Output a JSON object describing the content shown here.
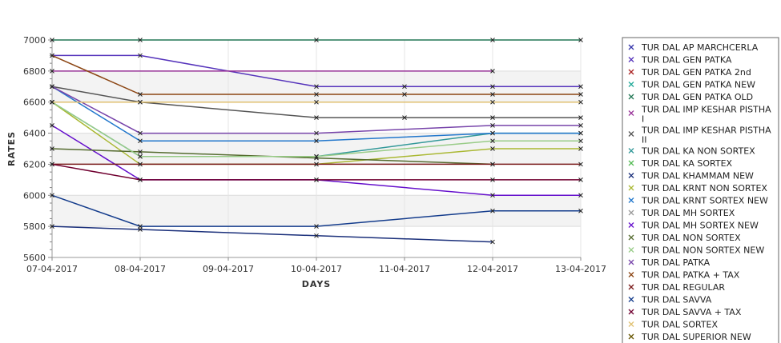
{
  "chart_data": {
    "type": "line",
    "title": "",
    "xlabel": "DAYS",
    "ylabel": "RATES",
    "x": [
      "07-04-2017",
      "08-04-2017",
      "09-04-2017",
      "10-04-2017",
      "11-04-2017",
      "12-04-2017",
      "13-04-2017"
    ],
    "ylim": [
      5600,
      7000
    ],
    "yticks": [
      5600,
      5800,
      6000,
      6200,
      6400,
      6600,
      6800,
      7000
    ],
    "grid": true,
    "legend_position": "right",
    "series": [
      {
        "name": "TUR DAL AP MARCHCERLA",
        "color": "#3333aa",
        "values": [
          null,
          null,
          null,
          null,
          null,
          null,
          null
        ]
      },
      {
        "name": "TUR DAL GEN PATKA",
        "color": "#5533bb",
        "values": [
          6900,
          6900,
          null,
          6700,
          6700,
          6700,
          6700
        ]
      },
      {
        "name": "TUR DAL GEN PATKA 2nd",
        "color": "#aa2222",
        "values": [
          null,
          null,
          null,
          null,
          null,
          null,
          null
        ]
      },
      {
        "name": "TUR DAL GEN PATKA NEW",
        "color": "#22aa99",
        "values": [
          null,
          null,
          null,
          null,
          null,
          null,
          null
        ]
      },
      {
        "name": "TUR DAL GEN PATKA OLD",
        "color": "#227755",
        "values": [
          7000,
          7000,
          null,
          7000,
          null,
          7000,
          7000
        ]
      },
      {
        "name": "TUR DAL IMP KESHAR PISTHA I",
        "color": "#993399",
        "values": [
          6800,
          null,
          null,
          null,
          null,
          6800,
          null
        ]
      },
      {
        "name": "TUR DAL IMP KESHAR PISTHA II",
        "color": "#555555",
        "values": [
          6700,
          6600,
          null,
          6500,
          6500,
          6500,
          6500
        ]
      },
      {
        "name": "TUR DAL KA NON SORTEX",
        "color": "#339999",
        "values": [
          6600,
          6250,
          null,
          6250,
          null,
          6400,
          6400
        ]
      },
      {
        "name": "TUR DAL KA SORTEX",
        "color": "#55bb55",
        "values": [
          null,
          null,
          null,
          null,
          null,
          null,
          null
        ]
      },
      {
        "name": "TUR DAL KHAMMAM NEW",
        "color": "#1a2f7a",
        "values": [
          5800,
          5780,
          null,
          5740,
          null,
          5700,
          null
        ]
      },
      {
        "name": "TUR DAL KRNT NON SORTEX",
        "color": "#aab833",
        "values": [
          6600,
          6200,
          null,
          6200,
          null,
          6300,
          6300
        ]
      },
      {
        "name": "TUR DAL KRNT SORTEX NEW",
        "color": "#2277cc",
        "values": [
          6700,
          6350,
          null,
          6350,
          null,
          6400,
          6400
        ]
      },
      {
        "name": "TUR DAL MH SORTEX",
        "color": "#999999",
        "values": [
          null,
          null,
          null,
          null,
          null,
          null,
          null
        ]
      },
      {
        "name": "TUR DAL MH SORTEX NEW",
        "color": "#6611cc",
        "values": [
          6450,
          6100,
          null,
          6100,
          null,
          6000,
          6000
        ]
      },
      {
        "name": "TUR DAL NON SORTEX",
        "color": "#556b2f",
        "values": [
          6300,
          6280,
          null,
          6240,
          null,
          6200,
          null
        ]
      },
      {
        "name": "TUR DAL NON SORTEX NEW",
        "color": "#99cc88",
        "values": [
          6600,
          6250,
          null,
          6250,
          null,
          6350,
          6350
        ]
      },
      {
        "name": "TUR DAL PATKA",
        "color": "#7744aa",
        "values": [
          6700,
          6400,
          null,
          6400,
          null,
          6450,
          6450
        ]
      },
      {
        "name": "TUR DAL PATKA + TAX",
        "color": "#8b4513",
        "values": [
          6900,
          6650,
          null,
          6650,
          6650,
          6650,
          6650
        ]
      },
      {
        "name": "TUR DAL REGULAR",
        "color": "#7a1a1a",
        "values": [
          6200,
          6200,
          null,
          6200,
          null,
          6200,
          6200
        ]
      },
      {
        "name": "TUR DAL SAVVA",
        "color": "#143c8c",
        "values": [
          6000,
          5800,
          null,
          5800,
          null,
          5900,
          5900
        ]
      },
      {
        "name": "TUR DAL SAVVA + TAX",
        "color": "#700030",
        "values": [
          6200,
          6100,
          null,
          6100,
          null,
          6100,
          6100
        ]
      },
      {
        "name": "TUR DAL SORTEX",
        "color": "#e0c070",
        "values": [
          6600,
          6600,
          null,
          6600,
          null,
          6600,
          6600
        ]
      },
      {
        "name": "TUR DAL SUPERIOR NEW",
        "color": "#665500",
        "values": [
          null,
          null,
          null,
          null,
          null,
          null,
          null
        ]
      }
    ]
  }
}
